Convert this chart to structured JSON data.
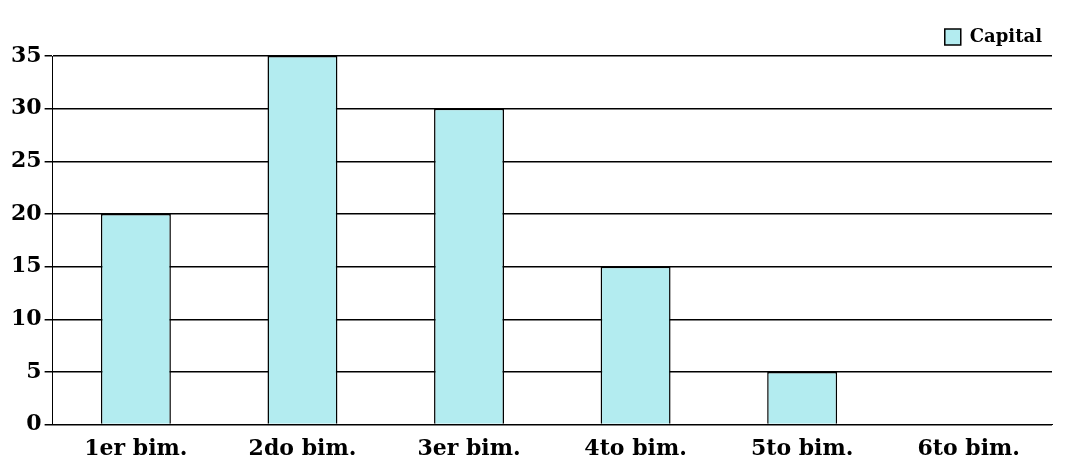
{
  "chart_data": {
    "type": "bar",
    "categories": [
      "1er bim.",
      "2do bim.",
      "3er bim.",
      "4to bim.",
      "5to bim.",
      "6to bim."
    ],
    "series": [
      {
        "name": "Capital",
        "color": "#b3ecf0",
        "values": [
          20,
          35,
          30,
          15,
          5,
          0
        ]
      }
    ],
    "ylim": [
      0,
      35
    ],
    "yticks": [
      0,
      5,
      10,
      15,
      20,
      25,
      30,
      35
    ],
    "grid": "y",
    "legend": "top right"
  }
}
